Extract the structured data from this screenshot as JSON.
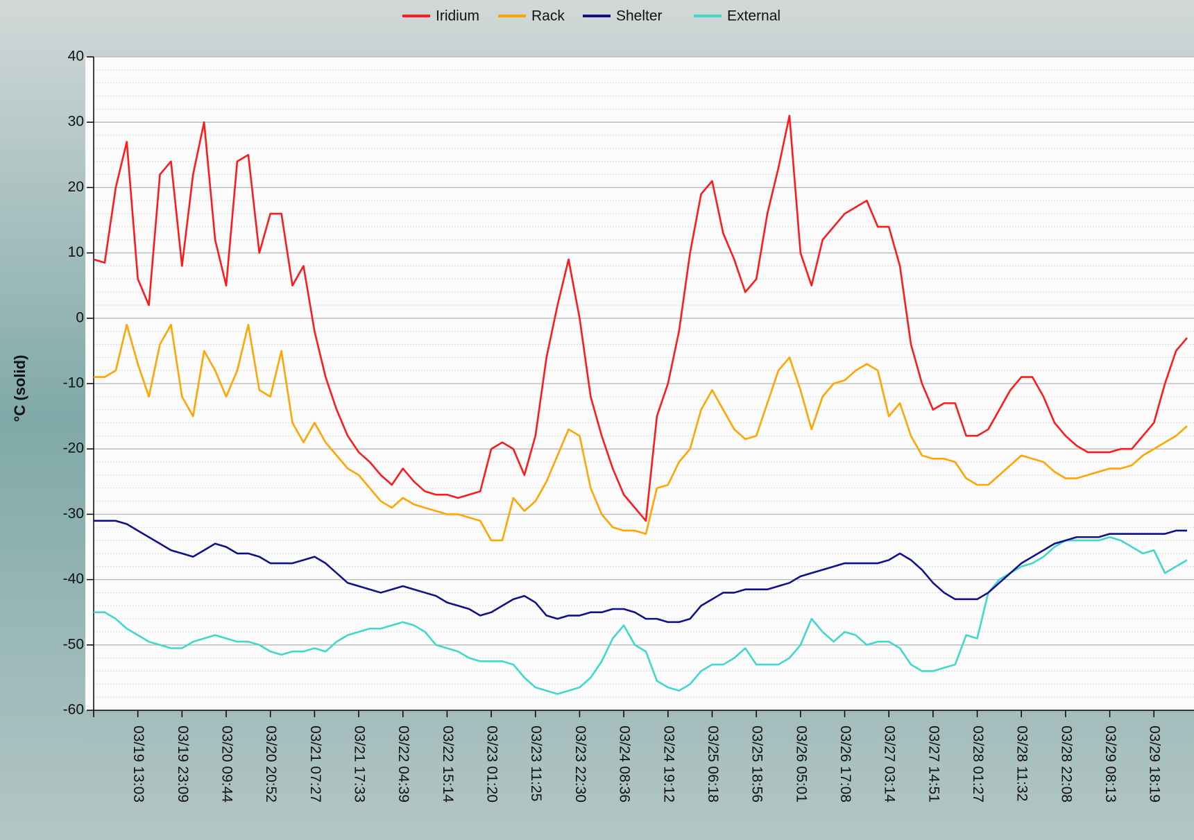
{
  "chart_data": {
    "type": "line",
    "y_label": "°C  (solid)",
    "categories": [
      null,
      null,
      null,
      null,
      "03/19 13:03",
      null,
      null,
      null,
      "03/19 23:09",
      null,
      null,
      null,
      "03/20 09:44",
      null,
      null,
      null,
      "03/20 20:52",
      null,
      null,
      null,
      "03/21 07:27",
      null,
      null,
      null,
      "03/21 17:33",
      null,
      null,
      null,
      "03/22 04:39",
      null,
      null,
      null,
      "03/22 15:14",
      null,
      null,
      null,
      "03/23 01:20",
      null,
      null,
      null,
      "03/23 11:25",
      null,
      null,
      null,
      "03/23 22:30",
      null,
      null,
      null,
      "03/24 08:36",
      null,
      null,
      null,
      "03/24 19:12",
      null,
      null,
      null,
      "03/25 06:18",
      null,
      null,
      null,
      "03/25 18:56",
      null,
      null,
      null,
      "03/26 05:01",
      null,
      null,
      null,
      "03/26 17:08",
      null,
      null,
      null,
      "03/27 03:14",
      null,
      null,
      null,
      "03/27 14:51",
      null,
      null,
      null,
      "03/28 01:27",
      null,
      null,
      null,
      "03/28 11:32",
      null,
      null,
      null,
      "03/28 22:08",
      null,
      null,
      null,
      "03/29 08:13",
      null,
      null,
      null,
      "03/29 18:19",
      null,
      null,
      null
    ],
    "series": [
      {
        "name": "Iridium",
        "color": "#ff1a1a",
        "values": [
          9,
          8.5,
          20,
          27,
          6,
          2,
          22,
          24,
          8,
          22,
          30,
          12,
          5,
          24,
          25,
          10,
          16,
          16,
          5,
          8,
          -2,
          -9,
          -14,
          -18,
          -20.5,
          -22,
          -24,
          -25.5,
          -23,
          -25,
          -26.5,
          -27,
          -27,
          -27.5,
          -27,
          -26.5,
          -20,
          -19,
          -20,
          -24,
          -18,
          -6,
          2,
          9,
          0,
          -12,
          -18,
          -23,
          -27,
          -29,
          -31,
          -15,
          -10,
          -2,
          10,
          19,
          21,
          13,
          9,
          4,
          6,
          16,
          23,
          31,
          10,
          5,
          12,
          14,
          16,
          17,
          18,
          14,
          14,
          8,
          -4,
          -10,
          -14,
          -13,
          -13,
          -18,
          -18,
          -17,
          -14,
          -11,
          -9,
          -9,
          -12,
          -16,
          -18,
          -19.5,
          -20.5,
          -20.5,
          -20.5,
          -20,
          -20,
          -18,
          -16,
          -10,
          -5,
          -3
        ]
      },
      {
        "name": "Rack",
        "color": "#ffa500",
        "values": [
          -9,
          -9,
          -8,
          -1,
          -7,
          -12,
          -4,
          -1,
          -12,
          -15,
          -5,
          -8,
          -12,
          -8,
          -1,
          -11,
          -12,
          -5,
          -16,
          -19,
          -16,
          -19,
          -21,
          -23,
          -24,
          -26,
          -28,
          -29,
          -27.5,
          -28.5,
          -29,
          -29.5,
          -30,
          -30,
          -30.5,
          -31,
          -34,
          -34,
          -27.5,
          -29.5,
          -28,
          -25,
          -21,
          -17,
          -18,
          -26,
          -30,
          -32,
          -32.5,
          -32.5,
          -33,
          -26,
          -25.5,
          -22,
          -20,
          -14,
          -11,
          -14,
          -17,
          -18.5,
          -18,
          -13,
          -8,
          -6,
          -11,
          -17,
          -12,
          -10,
          -9.5,
          -8,
          -7,
          -8,
          -15,
          -13,
          -18,
          -21,
          -21.5,
          -21.5,
          -22,
          -24.5,
          -25.5,
          -25.5,
          -24,
          -22.5,
          -21,
          -21.5,
          -22,
          -23.5,
          -24.5,
          -24.5,
          -24,
          -23.5,
          -23,
          -23,
          -22.5,
          -21,
          -20,
          -19,
          -18,
          -16.5
        ]
      },
      {
        "name": "Shelter",
        "color": "#10108a",
        "values": [
          -31,
          -31,
          -31,
          -31.5,
          -32.5,
          -33.5,
          -34.5,
          -35.5,
          -36,
          -36.5,
          -35.5,
          -34.5,
          -35,
          -36,
          -36,
          -36.5,
          -37.5,
          -37.5,
          -37.5,
          -37,
          -36.5,
          -37.5,
          -39,
          -40.5,
          -41,
          -41.5,
          -42,
          -41.5,
          -41,
          -41.5,
          -42,
          -42.5,
          -43.5,
          -44,
          -44.5,
          -45.5,
          -45,
          -44,
          -43,
          -42.5,
          -43.5,
          -45.5,
          -46,
          -45.5,
          -45.5,
          -45,
          -45,
          -44.5,
          -44.5,
          -45,
          -46,
          -46,
          -46.5,
          -46.5,
          -46,
          -44,
          -43,
          -42,
          -42,
          -41.5,
          -41.5,
          -41.5,
          -41,
          -40.5,
          -39.5,
          -39,
          -38.5,
          -38,
          -37.5,
          -37.5,
          -37.5,
          -37.5,
          -37,
          -36,
          -37,
          -38.5,
          -40.5,
          -42,
          -43,
          -43,
          -43,
          -42,
          -40.5,
          -39,
          -37.5,
          -36.5,
          -35.5,
          -34.5,
          -34,
          -33.5,
          -33.5,
          -33.5,
          -33,
          -33,
          -33,
          -33,
          -33,
          -33,
          -32.5,
          -32.5
        ]
      },
      {
        "name": "External",
        "color": "#40d8cc",
        "values": [
          -45,
          -45,
          -46,
          -47.5,
          -48.5,
          -49.5,
          -50,
          -50.5,
          -50.5,
          -49.5,
          -49,
          -48.5,
          -49,
          -49.5,
          -49.5,
          -50,
          -51,
          -51.5,
          -51,
          -51,
          -50.5,
          -51,
          -49.5,
          -48.5,
          -48,
          -47.5,
          -47.5,
          -47,
          -46.5,
          -47,
          -48,
          -50,
          -50.5,
          -51,
          -52,
          -52.5,
          -52.5,
          -52.5,
          -53,
          -55,
          -56.5,
          -57,
          -57.5,
          -57,
          -56.5,
          -55,
          -52.5,
          -49,
          -47,
          -50,
          -51,
          -55.5,
          -56.5,
          -57,
          -56,
          -54,
          -53,
          -53,
          -52,
          -50.5,
          -53,
          -53,
          -53,
          -52,
          -50,
          -46,
          -48,
          -49.5,
          -48,
          -48.5,
          -50,
          -49.5,
          -49.5,
          -50.5,
          -53,
          -54,
          -54,
          -53.5,
          -53,
          -48.5,
          -49,
          -42,
          -40,
          -39,
          -38,
          -37.5,
          -36.5,
          -35,
          -34,
          -34,
          -34,
          -34,
          -33.5,
          -34,
          -35,
          -36,
          -35.5,
          -39,
          -38,
          -37
        ]
      }
    ],
    "ylim": [
      -60,
      40
    ],
    "yticks": [
      -60,
      -50,
      -40,
      -30,
      -20,
      -10,
      0,
      10,
      20,
      30,
      40
    ],
    "grid": true,
    "legend": "top"
  }
}
